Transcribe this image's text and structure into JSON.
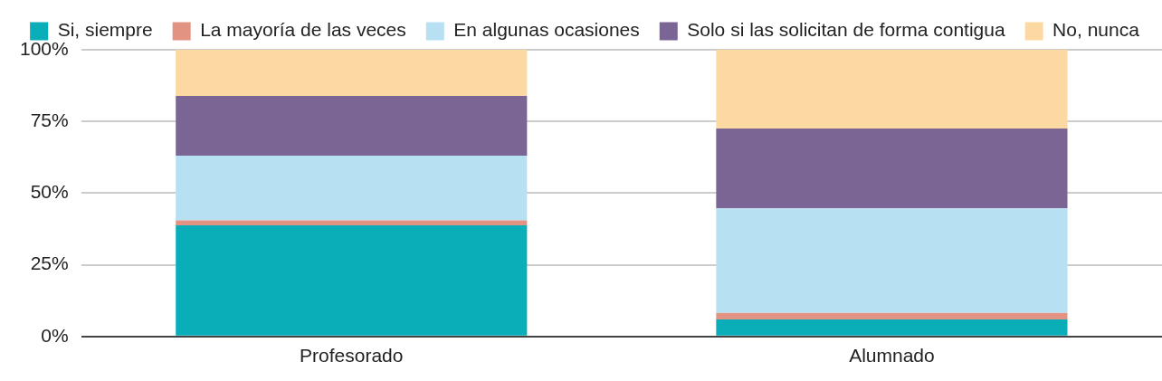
{
  "chart_data": {
    "type": "bar",
    "stacked": true,
    "categories": [
      "Profesorado",
      "Alumnado"
    ],
    "series": [
      {
        "name": "Si, siempre",
        "color": "#0aaeb9",
        "values": [
          38.8,
          5.9
        ]
      },
      {
        "name": "La mayoría de las veces",
        "color": "#e39382",
        "values": [
          1.7,
          2.3
        ]
      },
      {
        "name": "En algunas ocasiones",
        "color": "#b8e0f3",
        "values": [
          22.6,
          36.5
        ]
      },
      {
        "name": "Solo si las solicitan de forma contigua",
        "color": "#7a6595",
        "values": [
          20.8,
          27.8
        ]
      },
      {
        "name": "No, nunca",
        "color": "#fcd8a2",
        "values": [
          16.1,
          27.5
        ]
      }
    ],
    "ylim": [
      0,
      100
    ],
    "yticks": [
      {
        "value": 0,
        "label": "0%"
      },
      {
        "value": 25,
        "label": "25%"
      },
      {
        "value": 50,
        "label": "50%"
      },
      {
        "value": 75,
        "label": "75%"
      },
      {
        "value": 100,
        "label": "100%"
      }
    ],
    "grid": "y",
    "legend": "top"
  }
}
